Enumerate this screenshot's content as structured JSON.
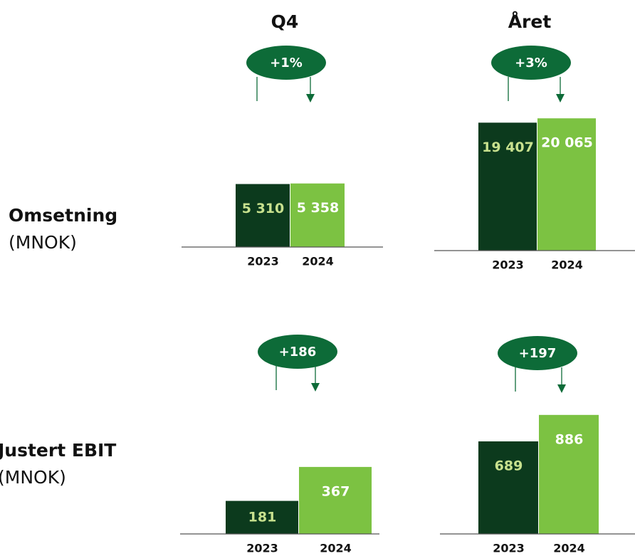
{
  "columns": [
    "Q4",
    "Året"
  ],
  "rows": [
    {
      "label": "Omsetning",
      "unit": "(MNOK)"
    },
    {
      "label": "Justert EBIT",
      "unit": "(MNOK)"
    }
  ],
  "chart_data": [
    {
      "type": "bar",
      "annotation": "+1%",
      "categories": [
        "2023",
        "2024"
      ],
      "values": [
        5310,
        5358
      ],
      "value_labels": [
        "5 310",
        "5 358"
      ],
      "colors": [
        "#0c3a1d",
        "#7cc242"
      ],
      "ylim": [
        0,
        12000
      ]
    },
    {
      "type": "bar",
      "annotation": "+3%",
      "categories": [
        "2023",
        "2024"
      ],
      "values": [
        19407,
        20065
      ],
      "value_labels": [
        "19 407",
        "20 065"
      ],
      "colors": [
        "#0c3a1d",
        "#7cc242"
      ],
      "ylim": [
        0,
        21600
      ]
    },
    {
      "type": "bar",
      "annotation": "+186",
      "categories": [
        "2023",
        "2024"
      ],
      "values": [
        181,
        367
      ],
      "colors": [
        "#0c3a1d",
        "#7cc242"
      ],
      "ylim": [
        0,
        780
      ]
    },
    {
      "type": "bar",
      "annotation": "+197",
      "categories": [
        "2023",
        "2024"
      ],
      "values": [
        689,
        886
      ],
      "colors": [
        "#0c3a1d",
        "#7cc242"
      ],
      "ylim": [
        0,
        1060
      ]
    }
  ]
}
